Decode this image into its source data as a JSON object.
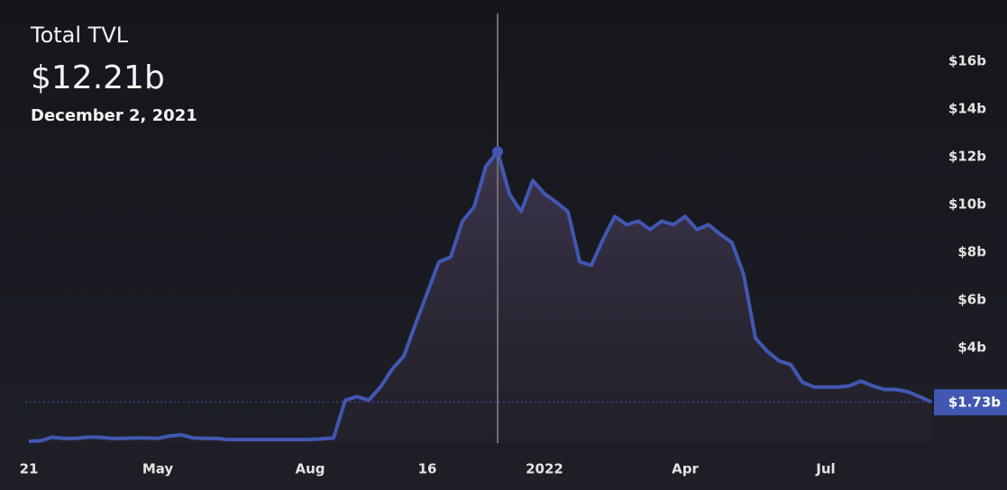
{
  "chart_data": {
    "type": "area",
    "title": "Total TVL",
    "hover": {
      "value": 12.21,
      "label": "$12.21b",
      "date": "December 2, 2021"
    },
    "current": {
      "value": 1.73,
      "label": "$1.73b"
    },
    "color": "#4257b2",
    "categories": [
      "21",
      null,
      null,
      null,
      null,
      null,
      null,
      null,
      null,
      null,
      null,
      "May",
      null,
      null,
      null,
      null,
      null,
      null,
      null,
      null,
      null,
      null,
      null,
      null,
      "Aug",
      null,
      null,
      null,
      null,
      null,
      null,
      null,
      null,
      null,
      "16",
      null,
      null,
      null,
      null,
      null,
      null,
      null,
      null,
      null,
      "2022",
      null,
      null,
      null,
      null,
      null,
      null,
      null,
      null,
      null,
      null,
      null,
      "Apr",
      null,
      null,
      null,
      null,
      null,
      null,
      null,
      null,
      null,
      null,
      null,
      "Jul",
      null,
      null,
      null,
      null,
      null,
      null,
      null,
      null,
      null
    ],
    "values": [
      0.08,
      0.1,
      0.25,
      0.2,
      0.2,
      0.25,
      0.25,
      0.2,
      0.2,
      0.22,
      0.22,
      0.2,
      0.3,
      0.35,
      0.22,
      0.2,
      0.2,
      0.15,
      0.15,
      0.15,
      0.15,
      0.15,
      0.15,
      0.15,
      0.15,
      0.18,
      0.22,
      1.8,
      1.95,
      1.8,
      2.35,
      3.1,
      3.65,
      5.0,
      6.3,
      7.6,
      7.8,
      9.3,
      9.9,
      11.6,
      12.21,
      10.45,
      9.7,
      11.0,
      10.45,
      10.1,
      9.7,
      7.6,
      7.45,
      8.55,
      9.5,
      9.15,
      9.3,
      8.95,
      9.3,
      9.15,
      9.5,
      8.95,
      9.15,
      8.75,
      8.4,
      7.05,
      4.4,
      3.85,
      3.45,
      3.3,
      2.55,
      2.35,
      2.35,
      2.35,
      2.4,
      2.6,
      2.4,
      2.25,
      2.25,
      2.15,
      1.95,
      1.73
    ],
    "ylim": [
      0,
      18
    ],
    "yticks": [
      {
        "value": 4,
        "label": "$4b"
      },
      {
        "value": 6,
        "label": "$6b"
      },
      {
        "value": 8,
        "label": "$8b"
      },
      {
        "value": 10,
        "label": "$10b"
      },
      {
        "value": 12,
        "label": "$12b"
      },
      {
        "value": 14,
        "label": "$14b"
      },
      {
        "value": 16,
        "label": "$16b"
      }
    ]
  }
}
